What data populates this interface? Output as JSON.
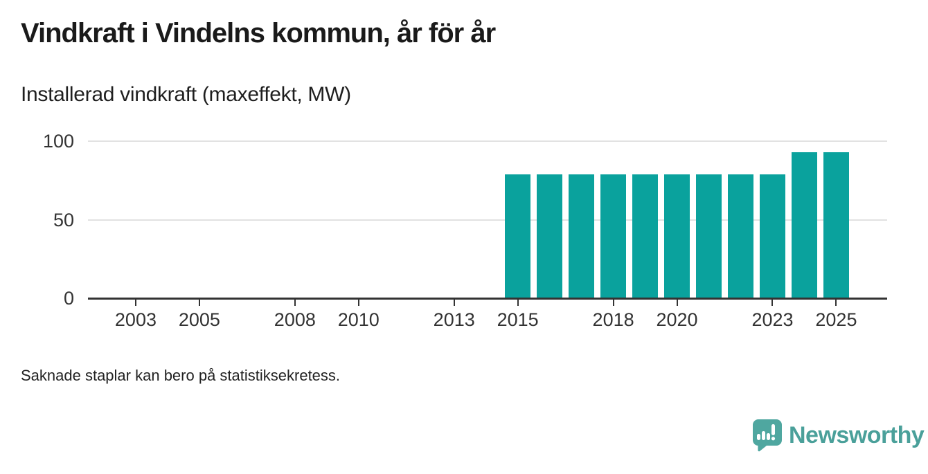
{
  "header": {
    "title": "Vindkraft i Vindelns kommun, år för år",
    "subtitle": "Installerad vindkraft (maxeffekt, MW)"
  },
  "footnote": "Saknade staplar kan bero på statistiksekretess.",
  "brand": {
    "name": "Newsworthy",
    "icon": "newsworthy-bubble-chart-icon",
    "wordmark_color": "#4aa09a",
    "icon_color": "#4fa7a0"
  },
  "colors": {
    "bar": "#0aa29d",
    "axis": "#333333",
    "grid": "#e2e2e2",
    "title_text": "#1a1a1a",
    "label_text": "#333333",
    "background": "#ffffff"
  },
  "chart_data": {
    "type": "bar",
    "title": "Vindkraft i Vindelns kommun, år för år",
    "subtitle": "Installerad vindkraft (maxeffekt, MW)",
    "xlabel": "",
    "ylabel": "Installerad vindkraft (maxeffekt, MW)",
    "x": [
      2015,
      2016,
      2017,
      2018,
      2019,
      2020,
      2021,
      2022,
      2023,
      2024,
      2025
    ],
    "values": [
      79,
      79,
      79,
      79,
      79,
      79,
      79,
      79,
      79,
      93,
      93
    ],
    "missing_years_note": "2001-2014 have no bars",
    "xticks": [
      2003,
      2005,
      2008,
      2010,
      2013,
      2015,
      2018,
      2020,
      2023,
      2025
    ],
    "yticks": [
      0,
      50,
      100
    ],
    "xlim": [
      2001.5,
      2026.6
    ],
    "ylim": [
      0,
      100
    ],
    "grid": "horizontal",
    "legend": "none",
    "bar_color": "#0aa29d"
  }
}
